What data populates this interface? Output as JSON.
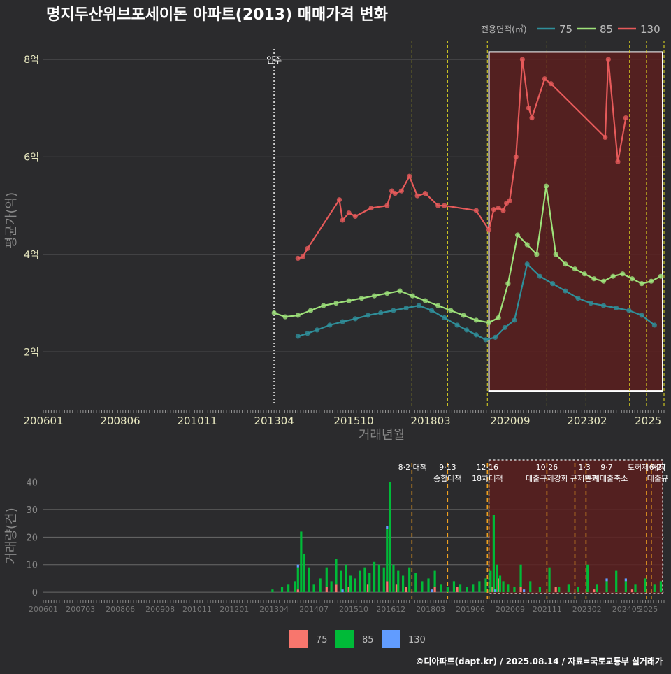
{
  "title": "명지두산위브포세이돈 아파트(2013) 매매가격 변화",
  "footer": "©디아파트(dapt.kr) / 2025.08.14 / 자료=국토교통부 실거래가",
  "colors": {
    "bg": "#2b2b2d",
    "grid": "#6a6a6a",
    "s75": "#2f8f9a",
    "s85": "#9ee27a",
    "s130": "#e65a5a",
    "b75": "#f8766d",
    "b85": "#00ba38",
    "b130": "#619cff",
    "policy_line": "#e8e020",
    "policy_line_bottom": "#f0a020",
    "move_in_line": "#cccccc",
    "highlight_fill": "#5a1f1f",
    "highlight_border": "#ffffff"
  },
  "chart_data": [
    {
      "type": "line",
      "name": "price",
      "ylabel": "평균가(억)",
      "xlabel": "거래년월",
      "legend_title": "전용면적(㎡)",
      "legend_position": "top-right",
      "ylim": [
        0.9,
        8.5
      ],
      "yticks": [
        2,
        4,
        6,
        8
      ],
      "ytick_labels": [
        "2억",
        "4억",
        "6억",
        "8억"
      ],
      "xlim": [
        2006.0,
        2025.5
      ],
      "xticks": [
        2006.0,
        2008.417,
        2010.833,
        2013.25,
        2015.75,
        2018.167,
        2020.667,
        2023.083,
        2025.0
      ],
      "xtick_labels": [
        "200601",
        "200806",
        "201011",
        "201304",
        "201510",
        "201803",
        "202009",
        "202302",
        "2025"
      ],
      "grid": true,
      "move_in": {
        "x": 2013.25,
        "label": "입주"
      },
      "policy_lines_x": [
        2017.58,
        2018.7,
        2019.95,
        2021.82,
        2023.05,
        2024.42,
        2024.95,
        2025.5
      ],
      "highlight_range": [
        2020.0,
        2025.5
      ],
      "highlight_yrange": [
        1.2,
        8.15
      ],
      "series": [
        {
          "name": "75",
          "color_key": "s75",
          "x": [
            2014.0,
            2014.3,
            2014.6,
            2015.0,
            2015.4,
            2015.8,
            2016.2,
            2016.6,
            2017.0,
            2017.4,
            2017.8,
            2018.2,
            2018.6,
            2019.0,
            2019.3,
            2019.6,
            2019.9,
            2020.2,
            2020.5,
            2020.8,
            2021.2,
            2021.6,
            2022.0,
            2022.4,
            2022.8,
            2023.2,
            2023.6,
            2024.0,
            2024.4,
            2024.8,
            2025.2
          ],
          "y": [
            2.32,
            2.38,
            2.45,
            2.55,
            2.62,
            2.68,
            2.75,
            2.8,
            2.85,
            2.9,
            2.95,
            2.85,
            2.7,
            2.55,
            2.45,
            2.35,
            2.25,
            2.3,
            2.5,
            2.65,
            3.8,
            3.55,
            3.4,
            3.25,
            3.1,
            3.0,
            2.95,
            2.9,
            2.85,
            2.75,
            2.55
          ]
        },
        {
          "name": "85",
          "color_key": "s85",
          "x": [
            2013.25,
            2013.6,
            2014.0,
            2014.4,
            2014.8,
            2015.2,
            2015.6,
            2016.0,
            2016.4,
            2016.8,
            2017.2,
            2017.6,
            2018.0,
            2018.4,
            2018.8,
            2019.2,
            2019.6,
            2020.0,
            2020.3,
            2020.6,
            2020.9,
            2021.2,
            2021.5,
            2021.8,
            2022.1,
            2022.4,
            2022.7,
            2023.0,
            2023.3,
            2023.6,
            2023.9,
            2024.2,
            2024.5,
            2024.8,
            2025.1,
            2025.4
          ],
          "y": [
            2.8,
            2.72,
            2.75,
            2.85,
            2.95,
            3.0,
            3.05,
            3.1,
            3.15,
            3.2,
            3.25,
            3.15,
            3.05,
            2.95,
            2.85,
            2.75,
            2.65,
            2.6,
            2.7,
            3.4,
            4.4,
            4.2,
            4.0,
            5.4,
            4.0,
            3.8,
            3.7,
            3.6,
            3.5,
            3.45,
            3.55,
            3.6,
            3.5,
            3.4,
            3.45,
            3.55
          ]
        },
        {
          "name": "130",
          "color_key": "s130",
          "x": [
            2014.0,
            2014.15,
            2014.3,
            2015.3,
            2015.4,
            2015.6,
            2015.8,
            2016.3,
            2016.8,
            2016.95,
            2017.05,
            2017.25,
            2017.5,
            2017.75,
            2018.0,
            2018.4,
            2018.6,
            2019.6,
            2020.0,
            2020.15,
            2020.3,
            2020.45,
            2020.55,
            2020.65,
            2020.85,
            2021.05,
            2021.25,
            2021.35,
            2021.75,
            2021.95,
            2023.65,
            2023.75,
            2024.05,
            2024.3
          ],
          "y": [
            3.92,
            3.95,
            4.12,
            5.12,
            4.7,
            4.85,
            4.78,
            4.95,
            5.0,
            5.3,
            5.25,
            5.3,
            5.6,
            5.2,
            5.25,
            5.0,
            5.0,
            4.9,
            4.5,
            4.92,
            4.95,
            4.9,
            5.05,
            5.1,
            6.0,
            8.0,
            7.0,
            6.8,
            7.6,
            7.5,
            6.4,
            8.0,
            5.9,
            6.8
          ]
        }
      ]
    },
    {
      "type": "bar",
      "name": "volume",
      "ylabel": "거래량(건)",
      "legend_position": "bottom",
      "ylim": [
        -2,
        48
      ],
      "yticks": [
        0,
        10,
        20,
        30,
        40
      ],
      "ytick_labels": [
        "0",
        "10",
        "20",
        "30",
        "40"
      ],
      "xlim": [
        2006.0,
        2025.5
      ],
      "xticks": [
        2006.0,
        2007.17,
        2008.42,
        2009.67,
        2010.83,
        2012.0,
        2013.25,
        2014.5,
        2015.75,
        2016.92,
        2018.17,
        2019.42,
        2020.67,
        2021.83,
        2023.08,
        2024.33,
        2025.0
      ],
      "xtick_labels": [
        "200601",
        "200703",
        "200806",
        "200908",
        "201011",
        "201201",
        "201304",
        "201407",
        "201510",
        "201612",
        "201803",
        "201906",
        "202009",
        "202111",
        "202302",
        "202405",
        "2025"
      ],
      "highlight_range": [
        2020.0,
        2025.5
      ],
      "series": [
        {
          "name": "75",
          "color_key": "b75",
          "x": [
            2014.0,
            2014.9,
            2015.2,
            2015.6,
            2016.2,
            2016.8,
            2017.1,
            2017.4,
            2018.3,
            2019.0,
            2020.1,
            2020.3,
            2021.0,
            2022.1,
            2023.3,
            2024.5
          ],
          "y": [
            1,
            2,
            3,
            2,
            3,
            4,
            3,
            2,
            2,
            2,
            2,
            5,
            2,
            2,
            1,
            1
          ]
        },
        {
          "name": "85",
          "color_key": "b85",
          "x": [
            2013.2,
            2013.5,
            2013.7,
            2013.9,
            2014.0,
            2014.1,
            2014.2,
            2014.35,
            2014.5,
            2014.7,
            2014.9,
            2015.05,
            2015.2,
            2015.35,
            2015.5,
            2015.65,
            2015.8,
            2015.95,
            2016.1,
            2016.25,
            2016.4,
            2016.55,
            2016.7,
            2016.8,
            2016.9,
            2017.0,
            2017.15,
            2017.3,
            2017.5,
            2017.7,
            2017.9,
            2018.1,
            2018.3,
            2018.5,
            2018.7,
            2018.9,
            2019.1,
            2019.3,
            2019.5,
            2019.7,
            2019.9,
            2020.05,
            2020.15,
            2020.25,
            2020.35,
            2020.45,
            2020.6,
            2020.8,
            2021.0,
            2021.3,
            2021.6,
            2021.9,
            2022.2,
            2022.5,
            2022.8,
            2023.1,
            2023.4,
            2023.7,
            2024.0,
            2024.3,
            2024.6,
            2024.9,
            2025.2,
            2025.4
          ],
          "y": [
            1,
            2,
            3,
            4,
            8,
            22,
            14,
            9,
            3,
            5,
            7,
            4,
            9,
            8,
            10,
            6,
            5,
            8,
            9,
            7,
            11,
            10,
            9,
            19,
            40,
            10,
            8,
            6,
            9,
            7,
            4,
            5,
            6,
            3,
            2,
            4,
            3,
            2,
            3,
            4,
            5,
            8,
            28,
            10,
            6,
            4,
            3,
            2,
            8,
            4,
            2,
            9,
            2,
            3,
            2,
            10,
            3,
            4,
            8,
            4,
            3,
            5,
            3,
            4
          ]
        },
        {
          "name": "130",
          "color_key": "b130",
          "x": [
            2014.0,
            2015.4,
            2016.8,
            2018.2,
            2020.2,
            2021.1,
            2023.7,
            2024.3
          ],
          "y": [
            1,
            1,
            1,
            1,
            1,
            1,
            1,
            1
          ]
        }
      ],
      "policy_lines_x": [
        2017.58,
        2018.7,
        2019.95,
        2020.0,
        2021.82,
        2022.7,
        2023.05,
        2024.95,
        2025.1
      ],
      "policy_labels": [
        {
          "x": 2017.6,
          "text": "8·2 대책"
        },
        {
          "x": 2018.7,
          "text": "9·13"
        },
        {
          "x": 2018.7,
          "text": "종합대책"
        },
        {
          "x": 2019.95,
          "text": "12·16"
        },
        {
          "x": 2019.95,
          "text": "18차대책"
        },
        {
          "x": 2021.82,
          "text": "10·26"
        },
        {
          "x": 2021.82,
          "text": "대출규제강화"
        },
        {
          "x": 2023.0,
          "text": "1·3"
        },
        {
          "x": 2023.0,
          "text": "규제완화"
        },
        {
          "x": 2023.7,
          "text": "9·7"
        },
        {
          "x": 2023.7,
          "text": "특례대출축소"
        },
        {
          "x": 2024.95,
          "text": "토허제 해제"
        },
        {
          "x": 2025.3,
          "text": "6·27"
        },
        {
          "x": 2025.3,
          "text": "대출규"
        }
      ]
    }
  ]
}
